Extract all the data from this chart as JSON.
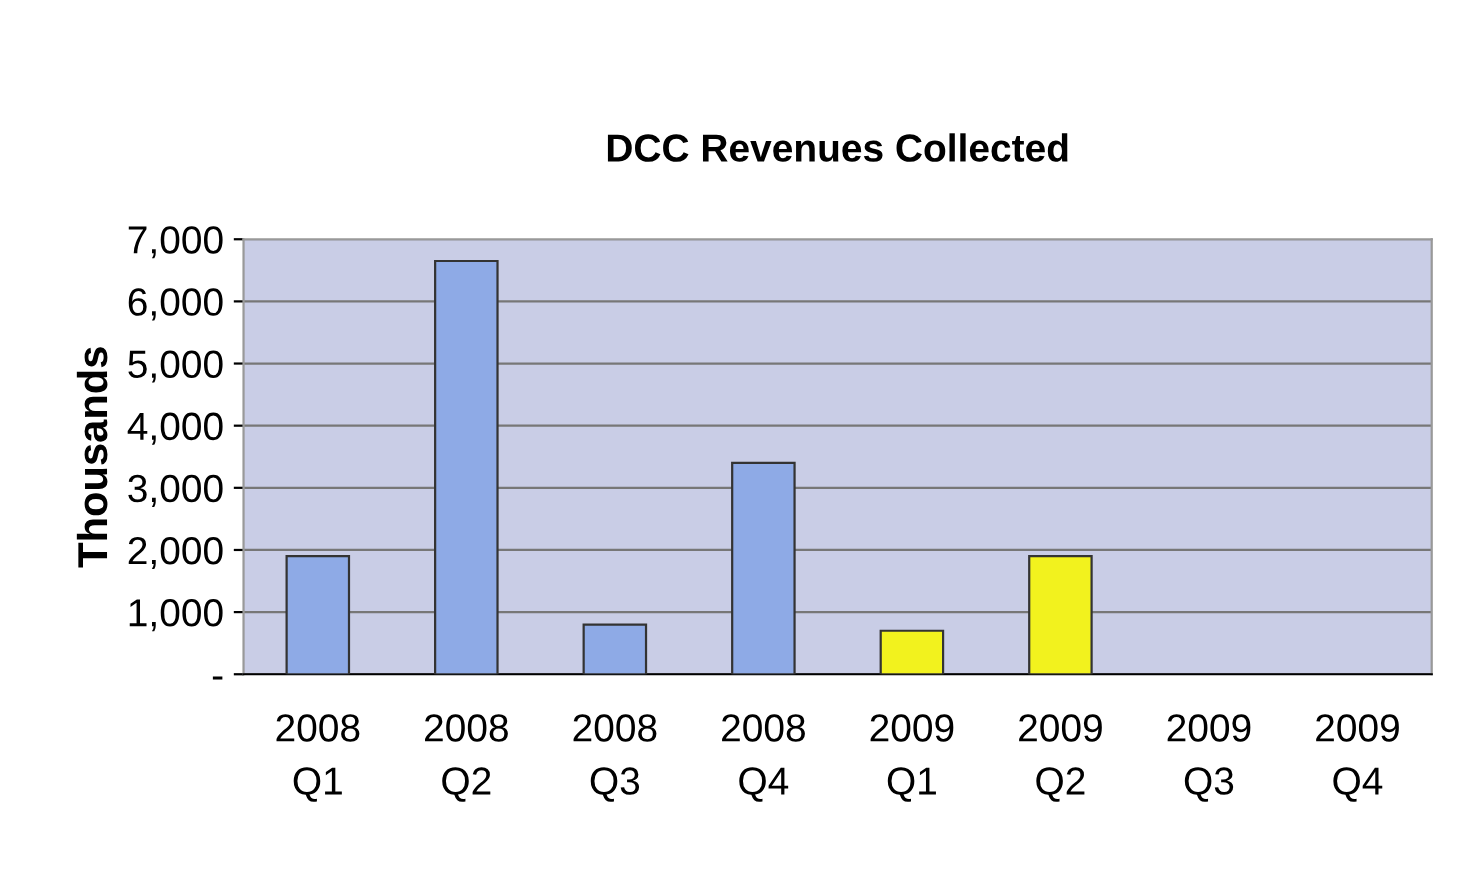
{
  "chart_data": {
    "type": "bar",
    "title": "DCC Revenues Collected",
    "ylabel": "Thousands",
    "categories": [
      "2008\nQ1",
      "2008\nQ2",
      "2008\nQ3",
      "2008\nQ4",
      "2009\nQ1",
      "2009\nQ2",
      "2009\nQ3",
      "2009\nQ4"
    ],
    "values": [
      1900,
      6650,
      800,
      3400,
      700,
      1900,
      null,
      null
    ],
    "colors": [
      "#8eaae6",
      "#8eaae6",
      "#8eaae6",
      "#8eaae6",
      "#f2f21e",
      "#f2f21e",
      "#f2f21e",
      "#f2f21e"
    ],
    "ylim": [
      0,
      7000
    ],
    "yticks": [
      {
        "value": 0,
        "label": "-"
      },
      {
        "value": 1000,
        "label": "1,000"
      },
      {
        "value": 2000,
        "label": "2,000"
      },
      {
        "value": 3000,
        "label": "3,000"
      },
      {
        "value": 4000,
        "label": "4,000"
      },
      {
        "value": 5000,
        "label": "5,000"
      },
      {
        "value": 6000,
        "label": "6,000"
      },
      {
        "value": 7000,
        "label": "7,000"
      }
    ],
    "grid": "y",
    "legend": false
  }
}
